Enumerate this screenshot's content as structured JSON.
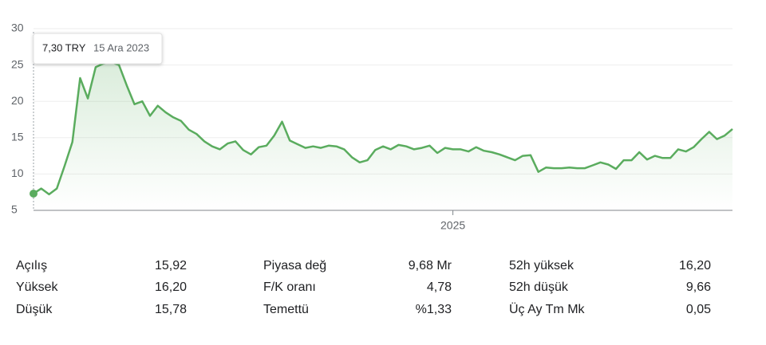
{
  "chart_data": {
    "type": "line",
    "categories": [
      "15 Ara 2023",
      null,
      null,
      null,
      null,
      null,
      null,
      null,
      null,
      null,
      null,
      null,
      null,
      null,
      null,
      null,
      null,
      null,
      null,
      null,
      null,
      null,
      null,
      null,
      null,
      null,
      null,
      null,
      null,
      null,
      null,
      null,
      null,
      null,
      null,
      null,
      null,
      null,
      null,
      null,
      null,
      null,
      null,
      null,
      null,
      null,
      null,
      null,
      null,
      null,
      null,
      null,
      null,
      null,
      "2025",
      null,
      null,
      null,
      null,
      null,
      null,
      null,
      null,
      null,
      null,
      null,
      null,
      null,
      null,
      null,
      null,
      null,
      null,
      null,
      null,
      null,
      null,
      null,
      null,
      null,
      null,
      null,
      null,
      null,
      null,
      null,
      null,
      null,
      null,
      null,
      null
    ],
    "values": [
      7.3,
      8.0,
      7.2,
      8.0,
      11.1,
      14.4,
      23.2,
      20.4,
      24.7,
      25.2,
      25.4,
      25.0,
      22.2,
      19.6,
      20.0,
      18.0,
      19.4,
      18.5,
      17.8,
      17.3,
      16.1,
      15.5,
      14.5,
      13.8,
      13.4,
      14.2,
      14.5,
      13.3,
      12.7,
      13.7,
      13.9,
      15.3,
      17.2,
      14.6,
      14.1,
      13.6,
      13.8,
      13.6,
      13.9,
      13.8,
      13.4,
      12.3,
      11.6,
      11.9,
      13.3,
      13.8,
      13.4,
      14.0,
      13.8,
      13.4,
      13.6,
      13.9,
      12.9,
      13.6,
      13.4,
      13.4,
      13.1,
      13.7,
      13.2,
      13.0,
      12.7,
      12.3,
      11.9,
      12.5,
      12.6,
      10.3,
      10.9,
      10.8,
      10.8,
      10.9,
      10.8,
      10.8,
      11.2,
      11.6,
      11.3,
      10.7,
      11.9,
      11.9,
      13.0,
      12.0,
      12.5,
      12.2,
      12.2,
      13.4,
      13.1,
      13.7,
      14.8,
      15.8,
      14.8,
      15.3,
      16.2
    ],
    "color": "#5aac5e",
    "ylim": [
      5,
      30
    ],
    "yticks": [
      5,
      10,
      15,
      20,
      25,
      30
    ],
    "grid": true,
    "tooltip": {
      "label": "7,30 TRY"
    }
  },
  "stats": [
    [
      [
        "Açılış",
        "15,92"
      ],
      [
        "Yüksek",
        "16,20"
      ],
      [
        "Düşük",
        "15,78"
      ]
    ],
    [
      [
        "Piyasa değ",
        "9,68 Mr"
      ],
      [
        "F/K oranı",
        "4,78"
      ],
      [
        "Temettü",
        "%1,33"
      ]
    ],
    [
      [
        "52h yüksek",
        "16,20"
      ],
      [
        "52h düşük",
        "9,66"
      ],
      [
        "Üç Ay Tm Mk",
        "0,05"
      ]
    ]
  ]
}
